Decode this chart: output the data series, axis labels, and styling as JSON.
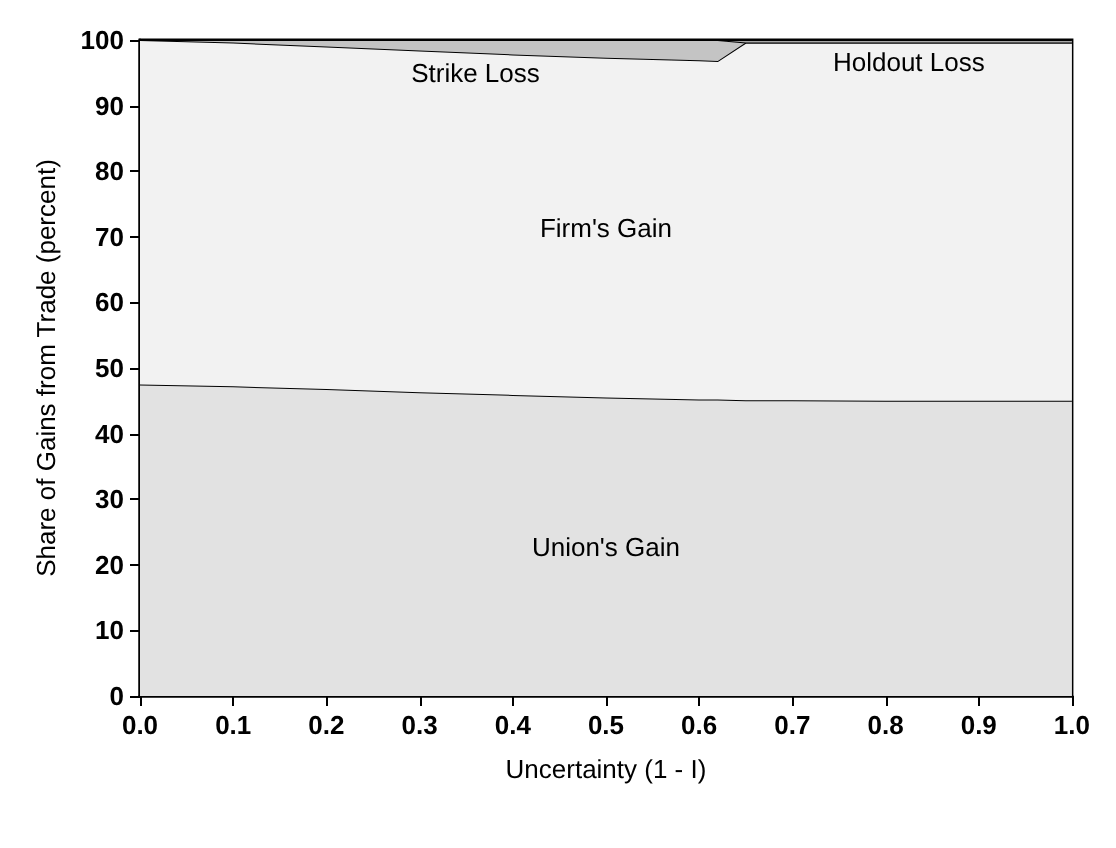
{
  "chart_data": {
    "type": "area",
    "stacked": true,
    "xlabel": "Uncertainty (1 - I)",
    "ylabel": "Share of Gains from Trade (percent)",
    "x": [
      0,
      0.1,
      0.2,
      0.3,
      0.4,
      0.5,
      0.6,
      0.62,
      0.65,
      0.7,
      0.8,
      0.9,
      1.0
    ],
    "series": [
      {
        "name": "Union's Gain",
        "color": "#e2e2e2",
        "values": [
          47.5,
          47.2,
          46.8,
          46.3,
          45.9,
          45.5,
          45.2,
          45.2,
          45.1,
          45.1,
          45.0,
          45.0,
          45.0
        ]
      },
      {
        "name": "Firm's Gain",
        "color": "#f2f2f2",
        "values": [
          52.5,
          52.4,
          52.2,
          52.1,
          51.9,
          51.8,
          51.7,
          51.6,
          54.5,
          54.5,
          54.6,
          54.6,
          54.6
        ]
      },
      {
        "name": "Strike Loss",
        "color": "#c4c4c4",
        "values": [
          0,
          0.4,
          1.0,
          1.6,
          2.2,
          2.7,
          3.1,
          3.2,
          0,
          0,
          0,
          0,
          0
        ]
      },
      {
        "name": "Holdout Loss",
        "color": "#a6a6a6",
        "values": [
          0,
          0,
          0,
          0,
          0,
          0,
          0,
          0,
          0.4,
          0.4,
          0.4,
          0.4,
          0.4
        ]
      }
    ],
    "xlim": [
      0,
      1
    ],
    "xticks": [
      {
        "value": 0,
        "label": "0.0"
      },
      0.1,
      0.2,
      0.3,
      0.4,
      0.5,
      0.6,
      0.7,
      0.8,
      0.9,
      {
        "value": 1,
        "label": "1.0"
      }
    ],
    "ylim": [
      0,
      100
    ],
    "yticks": [
      0,
      10,
      20,
      30,
      40,
      50,
      60,
      70,
      80,
      90,
      100
    ],
    "grid": false,
    "legend": false
  }
}
